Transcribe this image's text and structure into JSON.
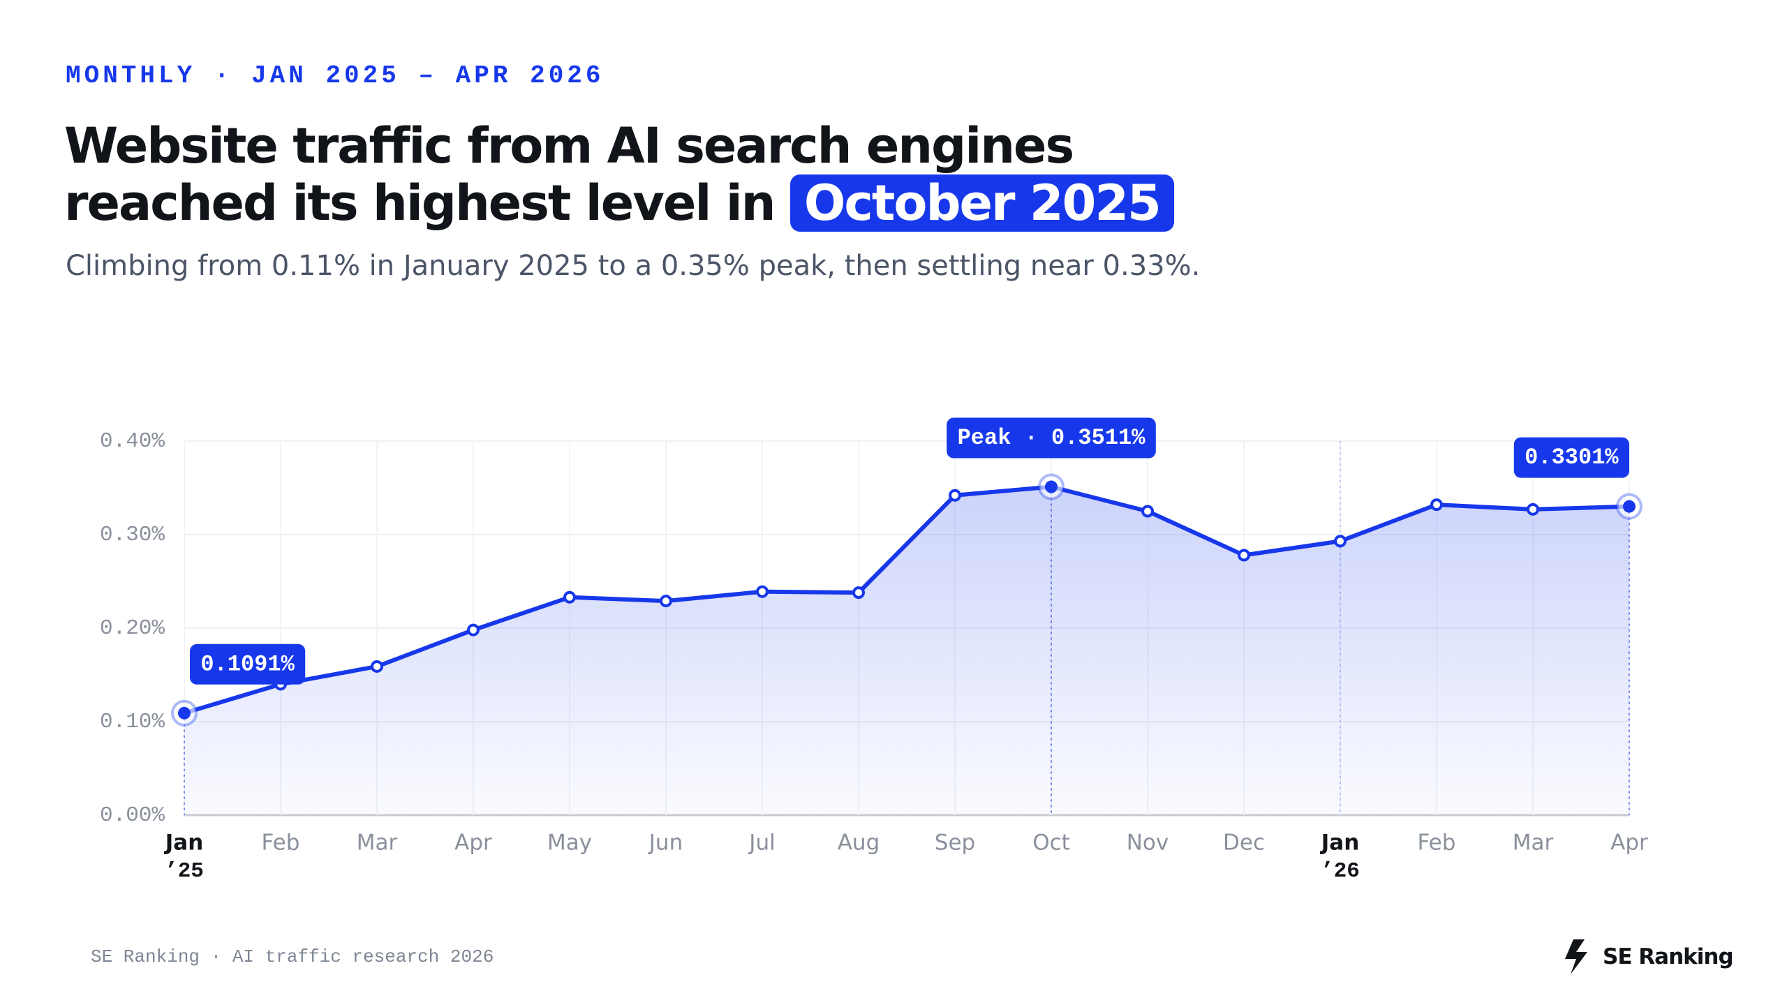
{
  "header": {
    "eyebrow": "MONTHLY · JAN 2025 – APR 2026",
    "title_line1": "Website traffic from AI search engines",
    "title_line2": "reached its highest level in",
    "title_highlight": "October 2025",
    "subtitle": "Climbing from 0.11% in January 2025 to a 0.35% peak, then settling near 0.33%."
  },
  "chart_data": {
    "type": "area",
    "categories": [
      {
        "month": "Jan",
        "year": "’25"
      },
      {
        "month": "Feb"
      },
      {
        "month": "Mar"
      },
      {
        "month": "Apr"
      },
      {
        "month": "May"
      },
      {
        "month": "Jun"
      },
      {
        "month": "Jul"
      },
      {
        "month": "Aug"
      },
      {
        "month": "Sep"
      },
      {
        "month": "Oct"
      },
      {
        "month": "Nov"
      },
      {
        "month": "Dec"
      },
      {
        "month": "Jan",
        "year": "’26"
      },
      {
        "month": "Feb"
      },
      {
        "month": "Mar"
      },
      {
        "month": "Apr"
      }
    ],
    "values": [
      0.1091,
      0.14,
      0.159,
      0.198,
      0.233,
      0.229,
      0.239,
      0.238,
      0.342,
      0.3511,
      0.325,
      0.278,
      0.293,
      0.332,
      0.327,
      0.3301
    ],
    "value_labels": [
      "0.1091%",
      null,
      null,
      null,
      null,
      null,
      null,
      null,
      null,
      "Peak · 0.3511%",
      null,
      null,
      null,
      null,
      null,
      "0.3301%"
    ],
    "color": "#1738ea",
    "ylim": [
      0,
      0.4
    ],
    "yticks": [
      {
        "value": 0,
        "label": "0.00%"
      },
      {
        "value": 0.1,
        "label": "0.10%"
      },
      {
        "value": 0.2,
        "label": "0.20%"
      },
      {
        "value": 0.3,
        "label": "0.30%"
      },
      {
        "value": 0.4,
        "label": "0.40%"
      }
    ],
    "grid": true
  },
  "footer": {
    "source": "SE Ranking · AI traffic research 2026",
    "logo": "SE Ranking"
  }
}
